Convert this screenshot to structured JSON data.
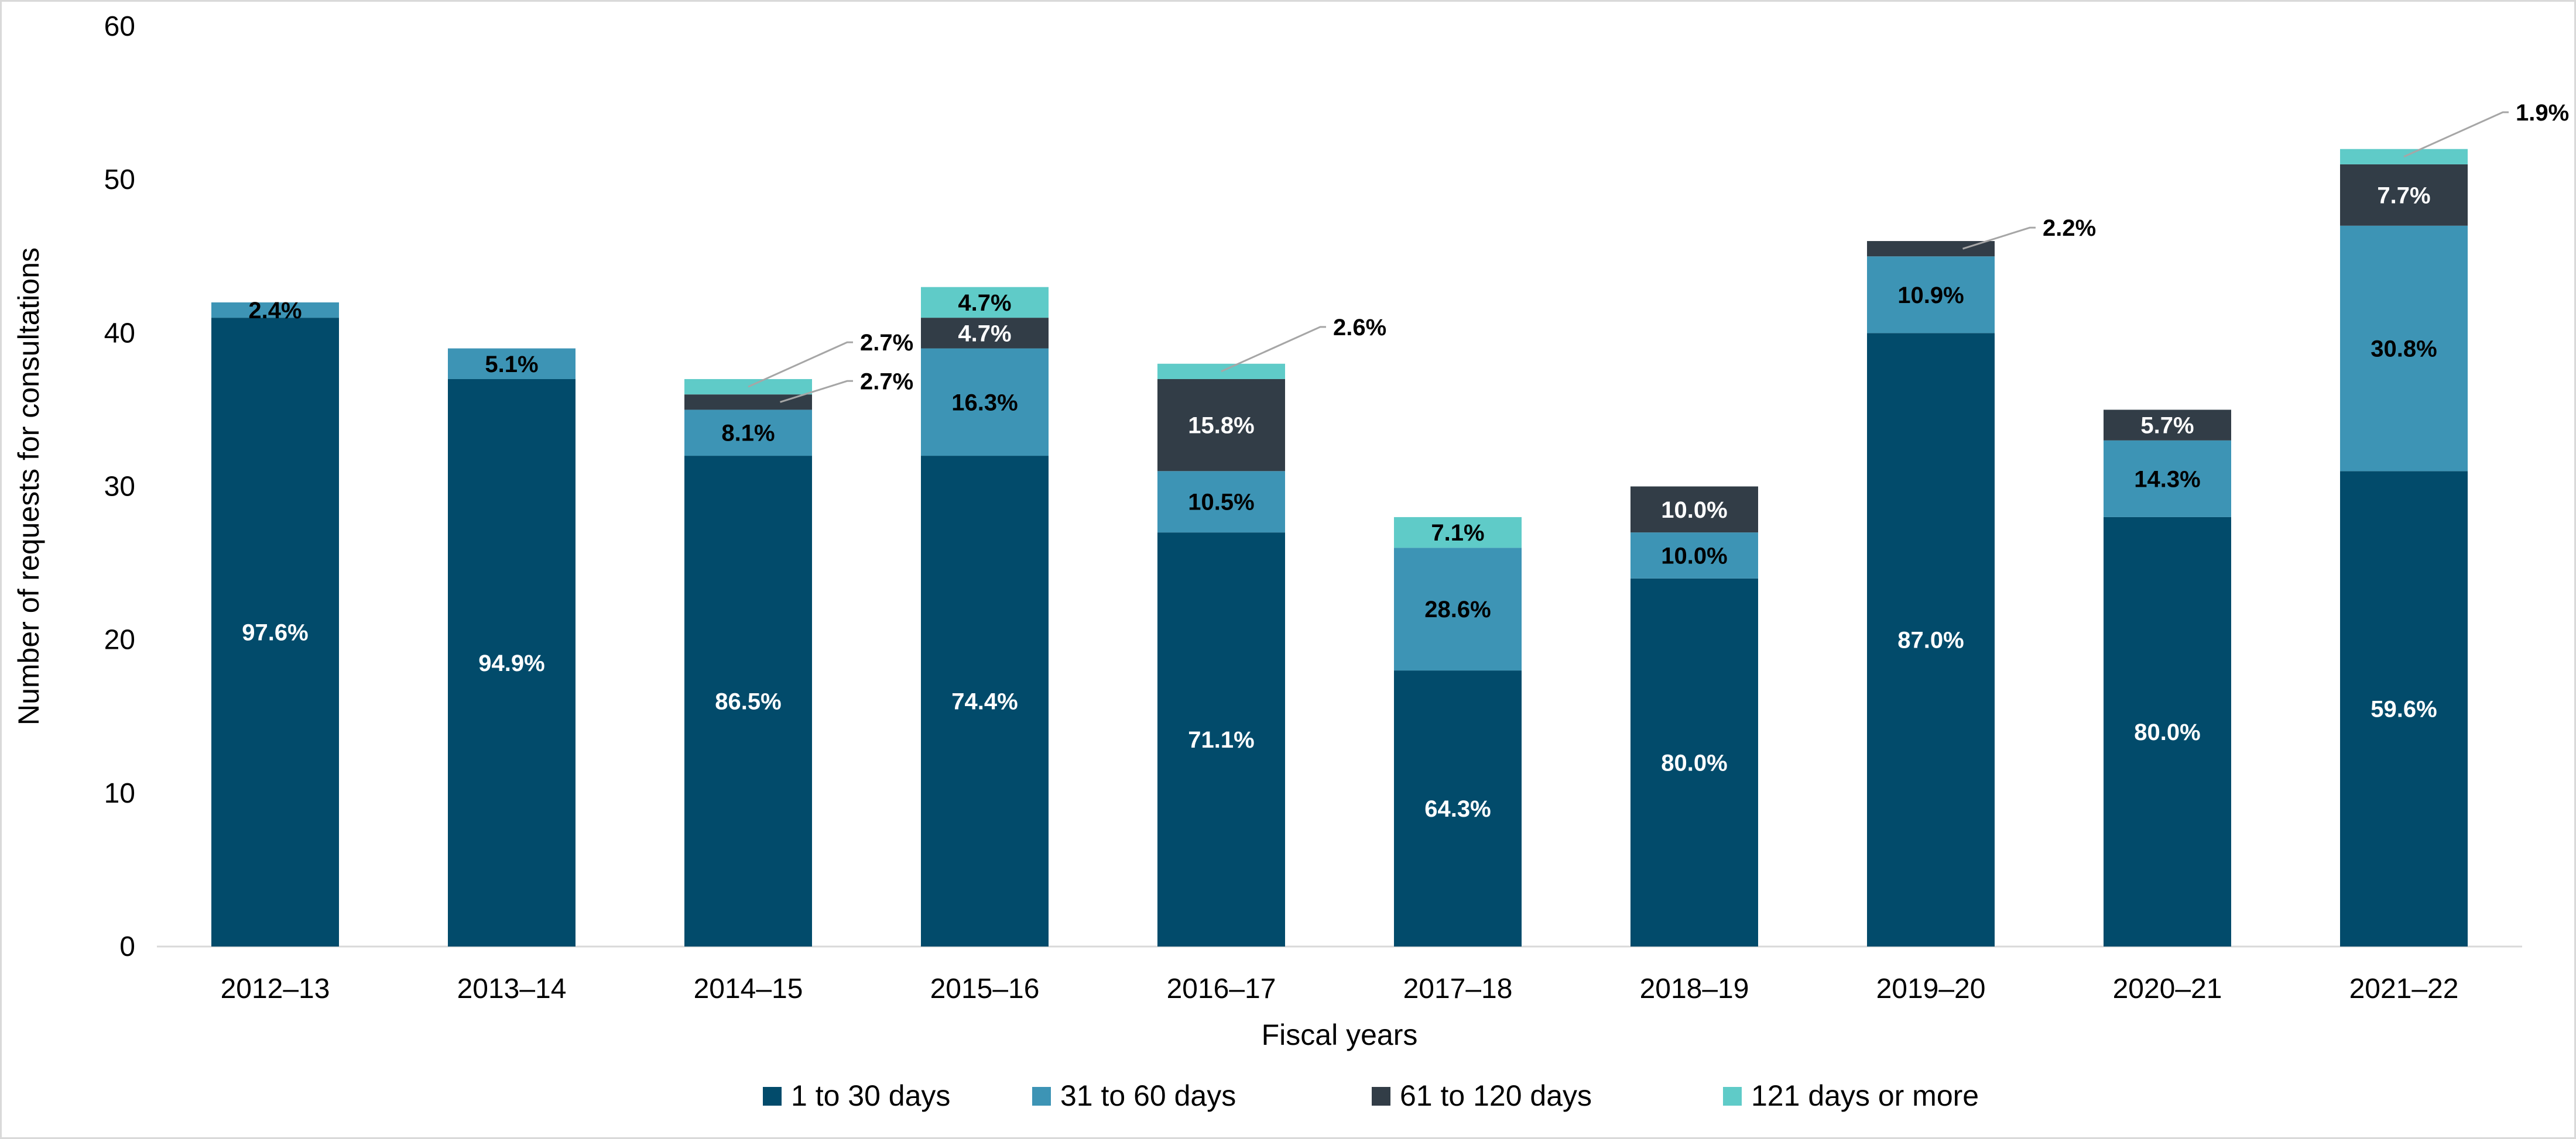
{
  "chart_data": {
    "type": "bar",
    "stacked": true,
    "title": "",
    "xlabel": "Fiscal years",
    "ylabel": "Number of requests for consultations",
    "ylim": [
      0,
      60
    ],
    "yticks": [
      0,
      10,
      20,
      30,
      40,
      50,
      60
    ],
    "grid": false,
    "legend_position": "bottom",
    "categories": [
      "2012–13",
      "2013–14",
      "2014–15",
      "2015–16",
      "2016–17",
      "2017–18",
      "2018–19",
      "2019–20",
      "2020–21",
      "2021–22"
    ],
    "series": [
      {
        "name": "1 to 30 days",
        "color": "#024b6b",
        "values": [
          41,
          37,
          32,
          32,
          27,
          18,
          24,
          40,
          28,
          31
        ],
        "labels": [
          "97.6%",
          "94.9%",
          "86.5%",
          "74.4%",
          "71.1%",
          "64.3%",
          "80.0%",
          "87.0%",
          "80.0%",
          "59.6%"
        ]
      },
      {
        "name": "31 to 60 days",
        "color": "#3d94b5",
        "values": [
          1,
          2,
          3,
          7,
          4,
          8,
          3,
          5,
          5,
          16
        ],
        "labels": [
          "2.4%",
          "5.1%",
          "8.1%",
          "16.3%",
          "10.5%",
          "28.6%",
          "10.0%",
          "10.9%",
          "14.3%",
          "30.8%"
        ]
      },
      {
        "name": "61 to 120 days",
        "color": "#323d47",
        "values": [
          0,
          0,
          1,
          2,
          6,
          0,
          3,
          1,
          2,
          4
        ],
        "labels": [
          "",
          "",
          "2.7%",
          "4.7%",
          "15.8%",
          "",
          "10.0%",
          "2.2%",
          "5.7%",
          "7.7%"
        ]
      },
      {
        "name": "121 days or more",
        "color": "#5fcbc8",
        "values": [
          0,
          0,
          1,
          2,
          1,
          2,
          0,
          0,
          0,
          1
        ],
        "labels": [
          "",
          "",
          "2.7%",
          "4.7%",
          "2.6%",
          "7.1%",
          "",
          "",
          "",
          "1.9%"
        ]
      }
    ]
  }
}
